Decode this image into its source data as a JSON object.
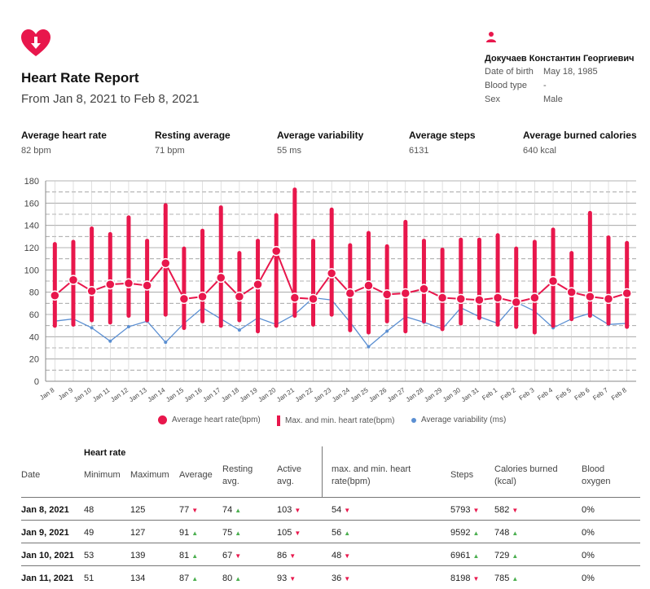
{
  "report": {
    "title": "Heart Rate Report",
    "period": "From Jan 8, 2021 to Feb 8, 2021"
  },
  "patient": {
    "name": "Докучаев Константин Георгиевич",
    "dob_label": "Date of birth",
    "dob_value": "May 18, 1985",
    "blood_label": "Blood type",
    "blood_value": "-",
    "sex_label": "Sex",
    "sex_value": "Male"
  },
  "stats": [
    {
      "label": "Average heart rate",
      "value": "82 bpm"
    },
    {
      "label": "Resting average",
      "value": "71 bpm"
    },
    {
      "label": "Average variability",
      "value": "55 ms"
    },
    {
      "label": "Average steps",
      "value": "6131"
    },
    {
      "label": "Average burned calories",
      "value": "640 kcal"
    }
  ],
  "colors": {
    "accent": "#e8174c",
    "variability": "#5b8fd2",
    "grid": "#888888"
  },
  "legend": {
    "avg": "Average heart rate(bpm)",
    "range": "Max. and min. heart rate(bpm)",
    "variability": "Average variability (ms)"
  },
  "chart_data": {
    "type": "line",
    "ylim": [
      0,
      180
    ],
    "yticks": [
      0,
      20,
      40,
      60,
      80,
      100,
      120,
      140,
      160,
      180
    ],
    "categories": [
      "Jan 8",
      "Jan 9",
      "Jan 10",
      "Jan 11",
      "Jan 12",
      "Jan 13",
      "Jan 14",
      "Jan 15",
      "Jan 16",
      "Jan 17",
      "Jan 18",
      "Jan 19",
      "Jan 20",
      "Jan 21",
      "Jan 22",
      "Jan 23",
      "Jan 24",
      "Jan 25",
      "Jan 26",
      "Jan 27",
      "Jan 28",
      "Jan 29",
      "Jan 30",
      "Jan 31",
      "Feb 1",
      "Feb 2",
      "Feb 3",
      "Feb 4",
      "Feb 5",
      "Feb 6",
      "Feb 7",
      "Feb 8"
    ],
    "series": [
      {
        "name": "Average heart rate(bpm)",
        "values": [
          77,
          91,
          81,
          87,
          88,
          86,
          106,
          74,
          76,
          93,
          76,
          87,
          117,
          75,
          74,
          97,
          79,
          86,
          78,
          79,
          83,
          75,
          74,
          73,
          75,
          71,
          75,
          90,
          80,
          76,
          74,
          79
        ]
      },
      {
        "name": "Max heart rate(bpm)",
        "values": [
          125,
          127,
          139,
          134,
          149,
          128,
          160,
          121,
          137,
          158,
          117,
          128,
          151,
          174,
          128,
          156,
          124,
          135,
          123,
          145,
          128,
          120,
          129,
          129,
          133,
          121,
          127,
          138,
          117,
          153,
          131,
          126
        ]
      },
      {
        "name": "Min heart rate(bpm)",
        "values": [
          48,
          49,
          53,
          51,
          57,
          53,
          58,
          46,
          52,
          48,
          53,
          43,
          48,
          57,
          49,
          58,
          44,
          42,
          52,
          43,
          52,
          45,
          50,
          55,
          49,
          47,
          42,
          48,
          54,
          57,
          50,
          47
        ]
      },
      {
        "name": "Average variability (ms)",
        "values": [
          54,
          56,
          48,
          36,
          49,
          54,
          35,
          52,
          66,
          56,
          46,
          57,
          51,
          60,
          75,
          73,
          53,
          31,
          45,
          58,
          53,
          47,
          66,
          58,
          52,
          71,
          63,
          48,
          56,
          61,
          51,
          52
        ]
      }
    ]
  },
  "table": {
    "group_title": "Heart rate",
    "headers": {
      "date": "Date",
      "min": "Minimum",
      "max": "Maximum",
      "avg": "Average",
      "resting_l1": "Resting",
      "resting_l2": "avg.",
      "active_l1": "Active",
      "active_l2": "avg.",
      "maxmin_l1": "max. and min. heart",
      "maxmin_l2": "rate(bpm)",
      "steps": "Steps",
      "cal_l1": "Calories burned",
      "cal_l2": "(kcal)",
      "oxy_l1": "Blood",
      "oxy_l2": "oxygen"
    },
    "rows": [
      {
        "date": "Jan 8, 2021",
        "min": "48",
        "max": "125",
        "avg": "77",
        "avg_trend": "down",
        "resting": "74",
        "resting_trend": "up",
        "active": "103",
        "active_trend": "down",
        "maxmin": "54",
        "maxmin_trend": "down",
        "steps": "5793",
        "steps_trend": "down",
        "cal": "582",
        "cal_trend": "down",
        "oxy": "0%"
      },
      {
        "date": "Jan 9, 2021",
        "min": "49",
        "max": "127",
        "avg": "91",
        "avg_trend": "up",
        "resting": "75",
        "resting_trend": "up",
        "active": "105",
        "active_trend": "down",
        "maxmin": "56",
        "maxmin_trend": "up",
        "steps": "9592",
        "steps_trend": "up",
        "cal": "748",
        "cal_trend": "up",
        "oxy": "0%"
      },
      {
        "date": "Jan 10, 2021",
        "min": "53",
        "max": "139",
        "avg": "81",
        "avg_trend": "up",
        "resting": "67",
        "resting_trend": "down",
        "active": "86",
        "active_trend": "down",
        "maxmin": "48",
        "maxmin_trend": "down",
        "steps": "6961",
        "steps_trend": "up",
        "cal": "729",
        "cal_trend": "up",
        "oxy": "0%"
      },
      {
        "date": "Jan 11, 2021",
        "min": "51",
        "max": "134",
        "avg": "87",
        "avg_trend": "up",
        "resting": "80",
        "resting_trend": "up",
        "active": "93",
        "active_trend": "down",
        "maxmin": "36",
        "maxmin_trend": "down",
        "steps": "8198",
        "steps_trend": "down",
        "cal": "785",
        "cal_trend": "up",
        "oxy": "0%"
      }
    ]
  }
}
